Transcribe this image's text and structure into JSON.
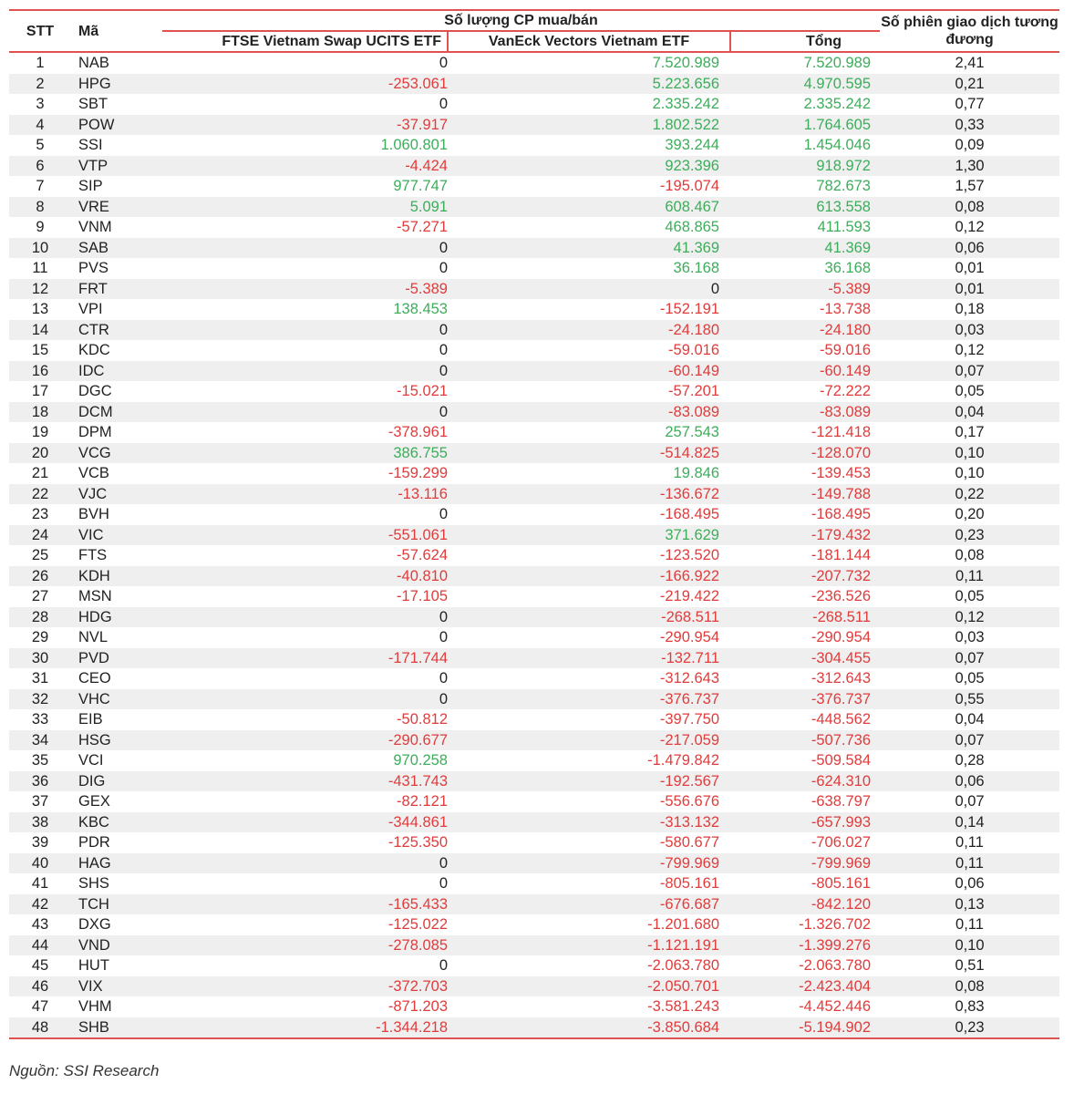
{
  "table": {
    "headers": {
      "stt": "STT",
      "ma": "Mã",
      "group": "Số lượng CP mua/bán",
      "ftse": "FTSE Vietnam Swap UCITS ETF",
      "vaneck": "VanEck Vectors Vietnam ETF",
      "tong": "Tổng",
      "sessions": "Số phiên giao dịch tương đương"
    },
    "colors": {
      "positive": "#3cae5a",
      "negative": "#e23b3b",
      "border": "#e05252",
      "stripe": "#efefef"
    },
    "rows": [
      {
        "stt": "1",
        "ma": "NAB",
        "ftse": "0",
        "vaneck": "7.520.989",
        "tong": "7.520.989",
        "sessions": "2,41"
      },
      {
        "stt": "2",
        "ma": "HPG",
        "ftse": "-253.061",
        "vaneck": "5.223.656",
        "tong": "4.970.595",
        "sessions": "0,21"
      },
      {
        "stt": "3",
        "ma": "SBT",
        "ftse": "0",
        "vaneck": "2.335.242",
        "tong": "2.335.242",
        "sessions": "0,77"
      },
      {
        "stt": "4",
        "ma": "POW",
        "ftse": "-37.917",
        "vaneck": "1.802.522",
        "tong": "1.764.605",
        "sessions": "0,33"
      },
      {
        "stt": "5",
        "ma": "SSI",
        "ftse": "1.060.801",
        "vaneck": "393.244",
        "tong": "1.454.046",
        "sessions": "0,09"
      },
      {
        "stt": "6",
        "ma": "VTP",
        "ftse": "-4.424",
        "vaneck": "923.396",
        "tong": "918.972",
        "sessions": "1,30"
      },
      {
        "stt": "7",
        "ma": "SIP",
        "ftse": "977.747",
        "vaneck": "-195.074",
        "tong": "782.673",
        "sessions": "1,57"
      },
      {
        "stt": "8",
        "ma": "VRE",
        "ftse": "5.091",
        "vaneck": "608.467",
        "tong": "613.558",
        "sessions": "0,08"
      },
      {
        "stt": "9",
        "ma": "VNM",
        "ftse": "-57.271",
        "vaneck": "468.865",
        "tong": "411.593",
        "sessions": "0,12"
      },
      {
        "stt": "10",
        "ma": "SAB",
        "ftse": "0",
        "vaneck": "41.369",
        "tong": "41.369",
        "sessions": "0,06"
      },
      {
        "stt": "11",
        "ma": "PVS",
        "ftse": "0",
        "vaneck": "36.168",
        "tong": "36.168",
        "sessions": "0,01"
      },
      {
        "stt": "12",
        "ma": "FRT",
        "ftse": "-5.389",
        "vaneck": "0",
        "tong": "-5.389",
        "sessions": "0,01"
      },
      {
        "stt": "13",
        "ma": "VPI",
        "ftse": "138.453",
        "vaneck": "-152.191",
        "tong": "-13.738",
        "sessions": "0,18"
      },
      {
        "stt": "14",
        "ma": "CTR",
        "ftse": "0",
        "vaneck": "-24.180",
        "tong": "-24.180",
        "sessions": "0,03"
      },
      {
        "stt": "15",
        "ma": "KDC",
        "ftse": "0",
        "vaneck": "-59.016",
        "tong": "-59.016",
        "sessions": "0,12"
      },
      {
        "stt": "16",
        "ma": "IDC",
        "ftse": "0",
        "vaneck": "-60.149",
        "tong": "-60.149",
        "sessions": "0,07"
      },
      {
        "stt": "17",
        "ma": "DGC",
        "ftse": "-15.021",
        "vaneck": "-57.201",
        "tong": "-72.222",
        "sessions": "0,05"
      },
      {
        "stt": "18",
        "ma": "DCM",
        "ftse": "0",
        "vaneck": "-83.089",
        "tong": "-83.089",
        "sessions": "0,04"
      },
      {
        "stt": "19",
        "ma": "DPM",
        "ftse": "-378.961",
        "vaneck": "257.543",
        "tong": "-121.418",
        "sessions": "0,17"
      },
      {
        "stt": "20",
        "ma": "VCG",
        "ftse": "386.755",
        "vaneck": "-514.825",
        "tong": "-128.070",
        "sessions": "0,10"
      },
      {
        "stt": "21",
        "ma": "VCB",
        "ftse": "-159.299",
        "vaneck": "19.846",
        "tong": "-139.453",
        "sessions": "0,10"
      },
      {
        "stt": "22",
        "ma": "VJC",
        "ftse": "-13.116",
        "vaneck": "-136.672",
        "tong": "-149.788",
        "sessions": "0,22"
      },
      {
        "stt": "23",
        "ma": "BVH",
        "ftse": "0",
        "vaneck": "-168.495",
        "tong": "-168.495",
        "sessions": "0,20"
      },
      {
        "stt": "24",
        "ma": "VIC",
        "ftse": "-551.061",
        "vaneck": "371.629",
        "tong": "-179.432",
        "sessions": "0,23"
      },
      {
        "stt": "25",
        "ma": "FTS",
        "ftse": "-57.624",
        "vaneck": "-123.520",
        "tong": "-181.144",
        "sessions": "0,08"
      },
      {
        "stt": "26",
        "ma": "KDH",
        "ftse": "-40.810",
        "vaneck": "-166.922",
        "tong": "-207.732",
        "sessions": "0,11"
      },
      {
        "stt": "27",
        "ma": "MSN",
        "ftse": "-17.105",
        "vaneck": "-219.422",
        "tong": "-236.526",
        "sessions": "0,05"
      },
      {
        "stt": "28",
        "ma": "HDG",
        "ftse": "0",
        "vaneck": "-268.511",
        "tong": "-268.511",
        "sessions": "0,12"
      },
      {
        "stt": "29",
        "ma": "NVL",
        "ftse": "0",
        "vaneck": "-290.954",
        "tong": "-290.954",
        "sessions": "0,03"
      },
      {
        "stt": "30",
        "ma": "PVD",
        "ftse": "-171.744",
        "vaneck": "-132.711",
        "tong": "-304.455",
        "sessions": "0,07"
      },
      {
        "stt": "31",
        "ma": "CEO",
        "ftse": "0",
        "vaneck": "-312.643",
        "tong": "-312.643",
        "sessions": "0,05"
      },
      {
        "stt": "32",
        "ma": "VHC",
        "ftse": "0",
        "vaneck": "-376.737",
        "tong": "-376.737",
        "sessions": "0,55"
      },
      {
        "stt": "33",
        "ma": "EIB",
        "ftse": "-50.812",
        "vaneck": "-397.750",
        "tong": "-448.562",
        "sessions": "0,04"
      },
      {
        "stt": "34",
        "ma": "HSG",
        "ftse": "-290.677",
        "vaneck": "-217.059",
        "tong": "-507.736",
        "sessions": "0,07"
      },
      {
        "stt": "35",
        "ma": "VCI",
        "ftse": "970.258",
        "vaneck": "-1.479.842",
        "tong": "-509.584",
        "sessions": "0,28"
      },
      {
        "stt": "36",
        "ma": "DIG",
        "ftse": "-431.743",
        "vaneck": "-192.567",
        "tong": "-624.310",
        "sessions": "0,06"
      },
      {
        "stt": "37",
        "ma": "GEX",
        "ftse": "-82.121",
        "vaneck": "-556.676",
        "tong": "-638.797",
        "sessions": "0,07"
      },
      {
        "stt": "38",
        "ma": "KBC",
        "ftse": "-344.861",
        "vaneck": "-313.132",
        "tong": "-657.993",
        "sessions": "0,14"
      },
      {
        "stt": "39",
        "ma": "PDR",
        "ftse": "-125.350",
        "vaneck": "-580.677",
        "tong": "-706.027",
        "sessions": "0,11"
      },
      {
        "stt": "40",
        "ma": "HAG",
        "ftse": "0",
        "vaneck": "-799.969",
        "tong": "-799.969",
        "sessions": "0,11"
      },
      {
        "stt": "41",
        "ma": "SHS",
        "ftse": "0",
        "vaneck": "-805.161",
        "tong": "-805.161",
        "sessions": "0,06"
      },
      {
        "stt": "42",
        "ma": "TCH",
        "ftse": "-165.433",
        "vaneck": "-676.687",
        "tong": "-842.120",
        "sessions": "0,13"
      },
      {
        "stt": "43",
        "ma": "DXG",
        "ftse": "-125.022",
        "vaneck": "-1.201.680",
        "tong": "-1.326.702",
        "sessions": "0,11"
      },
      {
        "stt": "44",
        "ma": "VND",
        "ftse": "-278.085",
        "vaneck": "-1.121.191",
        "tong": "-1.399.276",
        "sessions": "0,10"
      },
      {
        "stt": "45",
        "ma": "HUT",
        "ftse": "0",
        "vaneck": "-2.063.780",
        "tong": "-2.063.780",
        "sessions": "0,51"
      },
      {
        "stt": "46",
        "ma": "VIX",
        "ftse": "-372.703",
        "vaneck": "-2.050.701",
        "tong": "-2.423.404",
        "sessions": "0,08"
      },
      {
        "stt": "47",
        "ma": "VHM",
        "ftse": "-871.203",
        "vaneck": "-3.581.243",
        "tong": "-4.452.446",
        "sessions": "0,83"
      },
      {
        "stt": "48",
        "ma": "SHB",
        "ftse": "-1.344.218",
        "vaneck": "-3.850.684",
        "tong": "-5.194.902",
        "sessions": "0,23"
      }
    ]
  },
  "footer": {
    "source": "Nguồn:  SSI Research"
  }
}
